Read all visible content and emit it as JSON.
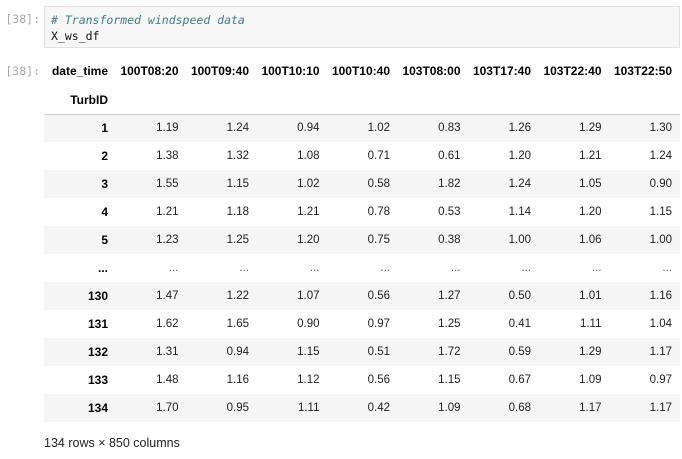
{
  "input_cell": {
    "prompt": "[38]:",
    "comment": "# Transformed windspeed data",
    "code": "X_ws_df"
  },
  "output_cell": {
    "prompt": "[38]:",
    "columns_name": "date_time",
    "index_name": "TurbID",
    "columns": [
      "100T08:20",
      "100T09:40",
      "100T10:10",
      "100T10:40",
      "103T08:00",
      "103T17:40",
      "103T22:40",
      "103T22:50"
    ],
    "rows": [
      {
        "index": "1",
        "values": [
          "1.19",
          "1.24",
          "0.94",
          "1.02",
          "0.83",
          "1.26",
          "1.29",
          "1.30"
        ]
      },
      {
        "index": "2",
        "values": [
          "1.38",
          "1.32",
          "1.08",
          "0.71",
          "0.61",
          "1.20",
          "1.21",
          "1.24"
        ]
      },
      {
        "index": "3",
        "values": [
          "1.55",
          "1.15",
          "1.02",
          "0.58",
          "1.82",
          "1.24",
          "1.05",
          "0.90"
        ]
      },
      {
        "index": "4",
        "values": [
          "1.21",
          "1.18",
          "1.21",
          "0.78",
          "0.53",
          "1.14",
          "1.20",
          "1.15"
        ]
      },
      {
        "index": "5",
        "values": [
          "1.23",
          "1.25",
          "1.20",
          "0.75",
          "0.38",
          "1.00",
          "1.06",
          "1.00"
        ]
      },
      {
        "index": "...",
        "values": [
          "...",
          "...",
          "...",
          "...",
          "...",
          "...",
          "...",
          "..."
        ]
      },
      {
        "index": "130",
        "values": [
          "1.47",
          "1.22",
          "1.07",
          "0.56",
          "1.27",
          "0.50",
          "1.01",
          "1.16"
        ]
      },
      {
        "index": "131",
        "values": [
          "1.62",
          "1.65",
          "0.90",
          "0.97",
          "1.25",
          "0.41",
          "1.11",
          "1.04"
        ]
      },
      {
        "index": "132",
        "values": [
          "1.31",
          "0.94",
          "1.15",
          "0.51",
          "1.72",
          "0.59",
          "1.29",
          "1.17"
        ]
      },
      {
        "index": "133",
        "values": [
          "1.48",
          "1.16",
          "1.12",
          "0.56",
          "1.15",
          "0.67",
          "1.09",
          "0.97"
        ]
      },
      {
        "index": "134",
        "values": [
          "1.70",
          "0.95",
          "1.11",
          "0.42",
          "1.09",
          "0.68",
          "1.17",
          "1.17"
        ]
      }
    ],
    "shape_text": "134 rows × 850 columns"
  },
  "colors": {
    "prompt": "#a8a8a8",
    "comment": "#408080",
    "code_bg": "#f7f7f7",
    "stripe": "#f5f5f5"
  }
}
